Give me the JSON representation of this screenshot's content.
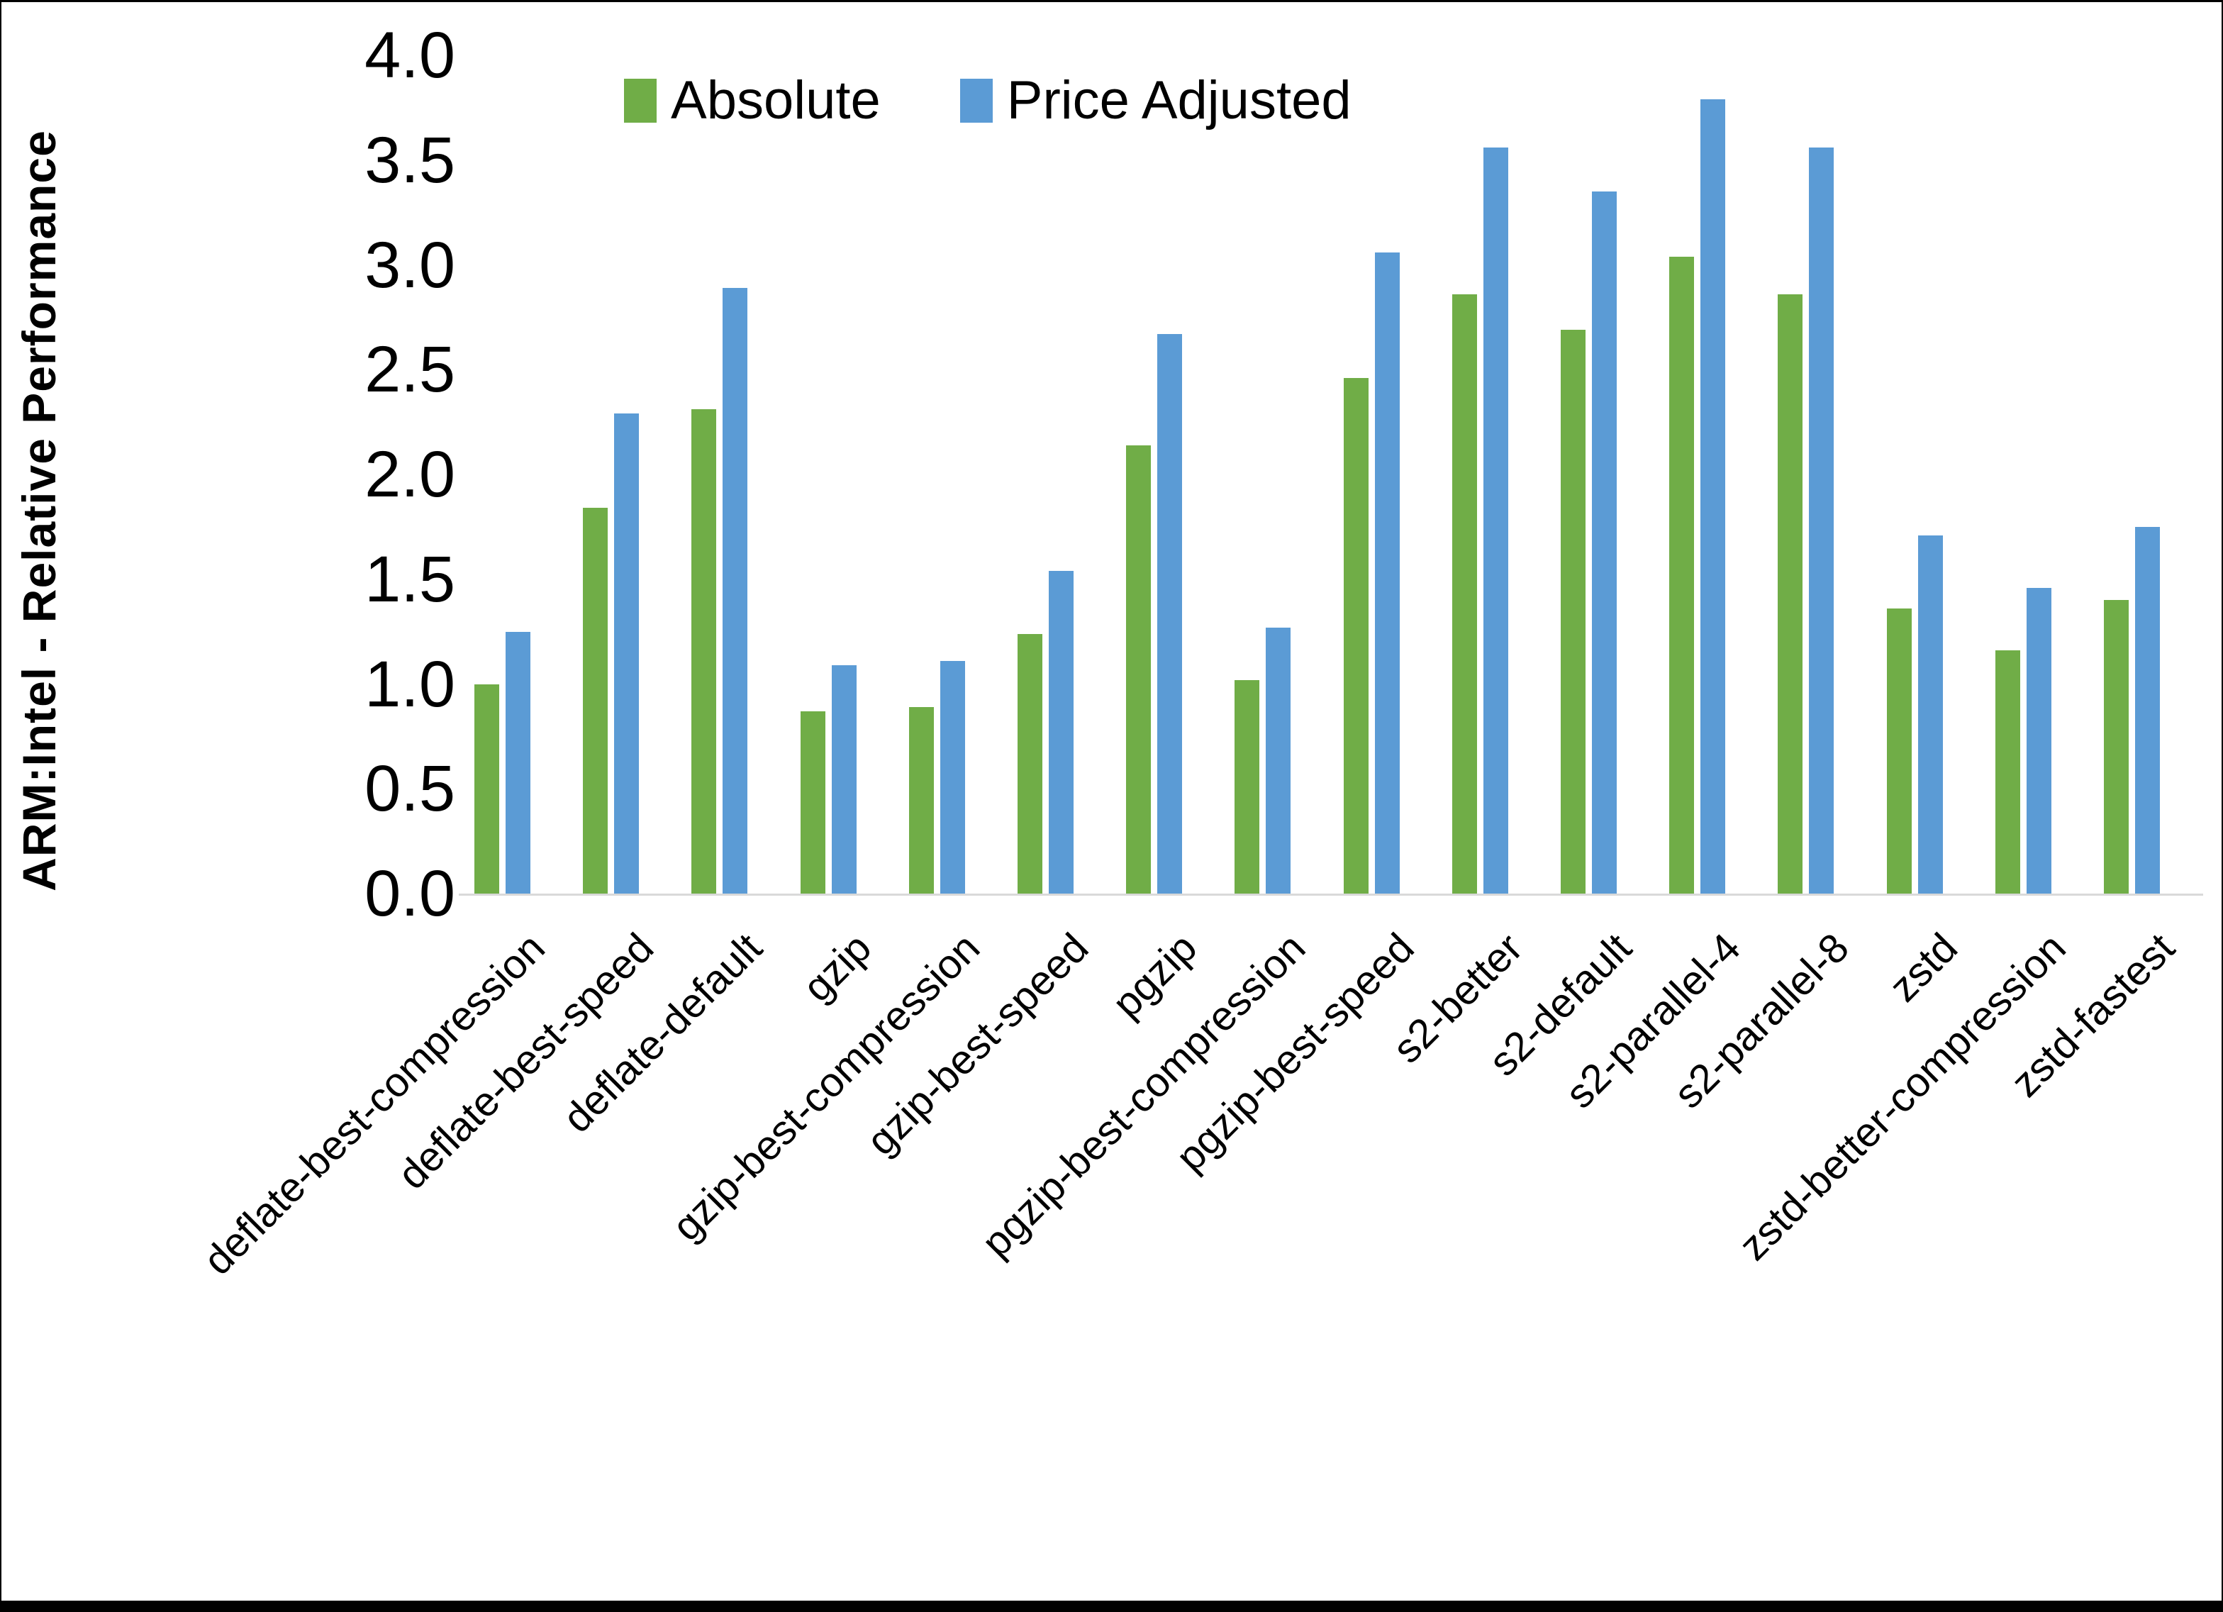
{
  "figure": {
    "background": "#ffffff",
    "border_color": "#000000",
    "axis_line_color": "#d9d9d9"
  },
  "chart_data": {
    "type": "bar",
    "title": "",
    "xlabel": "",
    "ylabel": "ARM:Intel - Relative Performance",
    "ylim": [
      0.0,
      4.0
    ],
    "ytick_step": 0.5,
    "yticks": [
      "0.0",
      "0.5",
      "1.0",
      "1.5",
      "2.0",
      "2.5",
      "3.0",
      "3.5",
      "4.0"
    ],
    "grid": false,
    "legend_position": "top-center",
    "categories": [
      "deflate-best-compression",
      "deflate-best-speed",
      "deflate-default",
      "gzip",
      "gzip-best-compression",
      "gzip-best-speed",
      "pgzip",
      "pgzip-best-compression",
      "pgzip-best-speed",
      "s2-better",
      "s2-default",
      "s2-parallel-4",
      "s2-parallel-8",
      "zstd",
      "zstd-better-compression",
      "zstd-fastest"
    ],
    "series": [
      {
        "name": "Absolute",
        "color": "#70AD47",
        "values": [
          1.0,
          1.84,
          2.31,
          0.87,
          0.89,
          1.24,
          2.14,
          1.02,
          2.46,
          2.86,
          2.69,
          3.04,
          2.86,
          1.36,
          1.16,
          1.4
        ]
      },
      {
        "name": "Price Adjusted",
        "color": "#5B9BD5",
        "values": [
          1.25,
          2.29,
          2.89,
          1.09,
          1.11,
          1.54,
          2.67,
          1.27,
          3.06,
          3.56,
          3.35,
          3.79,
          3.56,
          1.71,
          1.46,
          1.75
        ]
      }
    ]
  }
}
